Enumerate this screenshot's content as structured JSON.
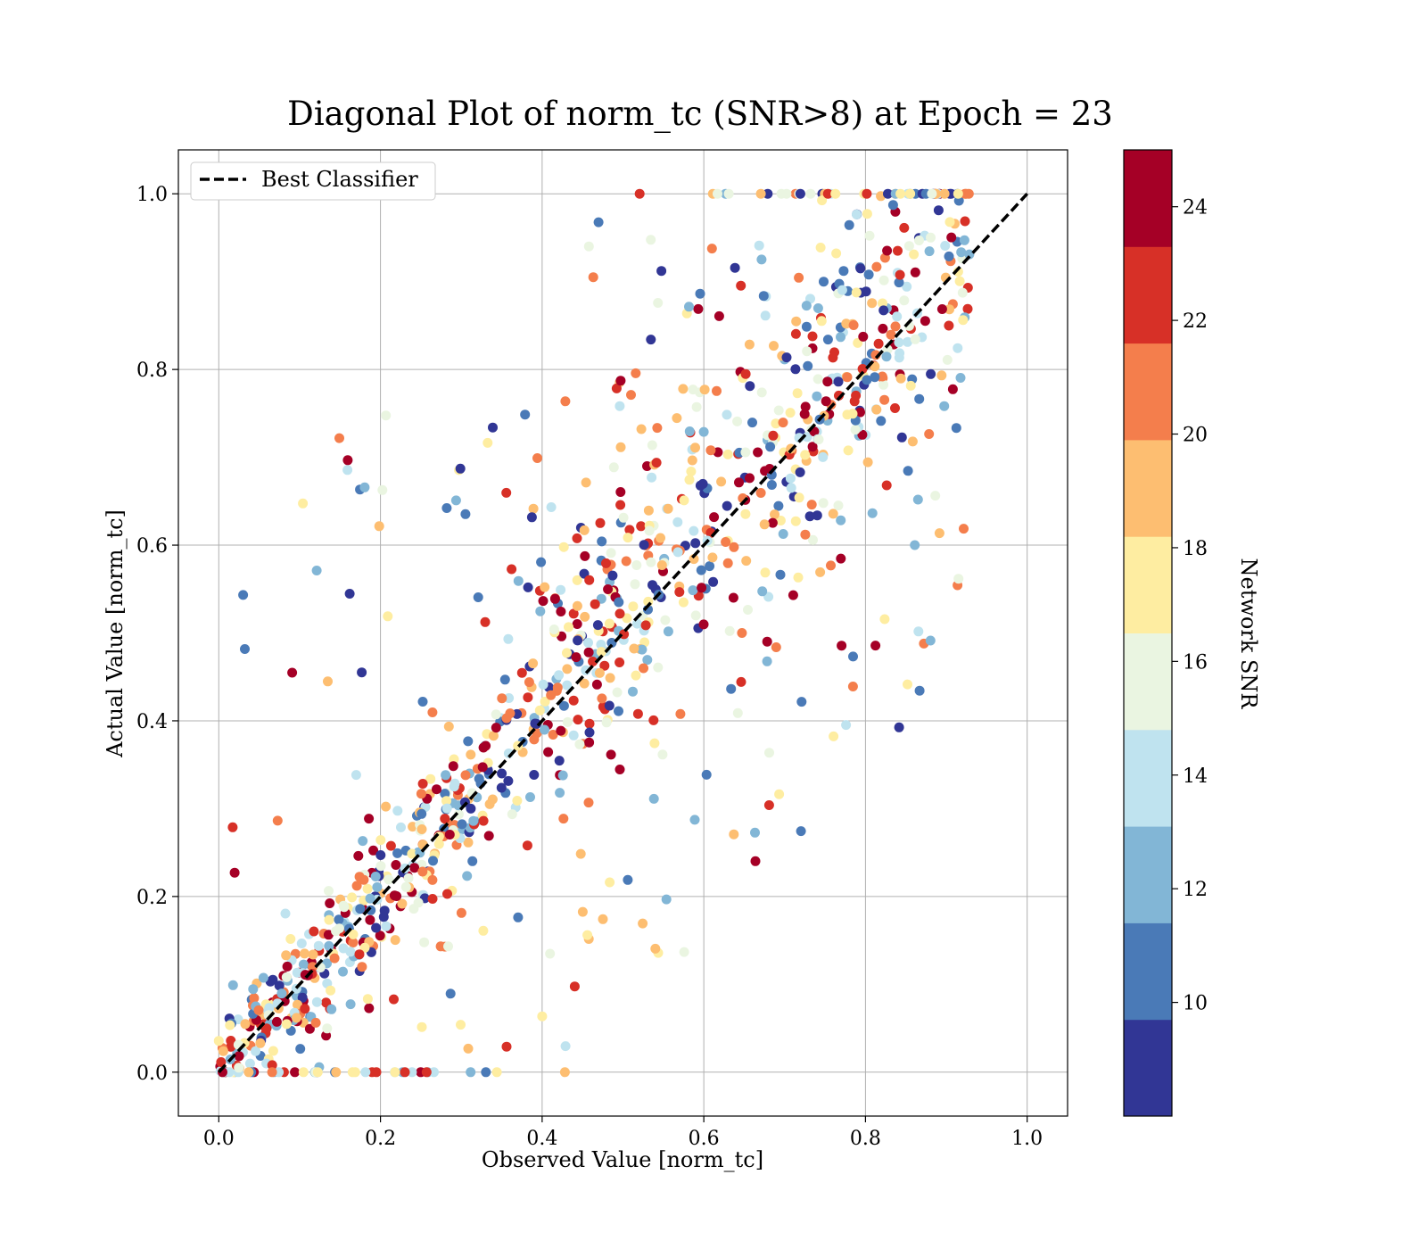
{
  "chart_data": {
    "type": "scatter",
    "title": "Diagonal Plot of norm_tc (SNR>8) at Epoch = 23",
    "xlabel": "Observed Value [norm_tc]",
    "ylabel": "Actual Value [norm_tc]",
    "xlim": [
      -0.05,
      1.05
    ],
    "ylim": [
      -0.05,
      1.05
    ],
    "x_ticks": [
      "0.0",
      "0.2",
      "0.4",
      "0.6",
      "0.8",
      "1.0"
    ],
    "y_ticks": [
      "0.0",
      "0.2",
      "0.4",
      "0.6",
      "0.8",
      "1.0"
    ],
    "grid": true,
    "legend": {
      "location": "upper-left",
      "entries": [
        "Best Classifier"
      ]
    },
    "reference_line": {
      "name": "Best Classifier",
      "style": "dashed",
      "color": "#000000",
      "x": [
        0,
        1
      ],
      "y": [
        0,
        1
      ]
    },
    "colorbar": {
      "label": "Network SNR",
      "range": [
        8,
        25
      ],
      "ticks": [
        "10",
        "12",
        "14",
        "16",
        "18",
        "20",
        "22",
        "24"
      ],
      "bins": 10,
      "colors": [
        "#313695",
        "#4a7ab7",
        "#82b6d6",
        "#bfe3ef",
        "#eaf5e1",
        "#feeda1",
        "#fdbe71",
        "#f47e4c",
        "#d73027",
        "#a50026"
      ]
    },
    "scatter": {
      "seed": 23,
      "n_points": 1150,
      "x_range": [
        0.0,
        0.93
      ],
      "y_range": [
        0.0,
        1.0
      ],
      "trend": "y≈x with spread growing toward the middle and upper ranges",
      "snr_range": [
        8,
        25
      ]
    }
  }
}
